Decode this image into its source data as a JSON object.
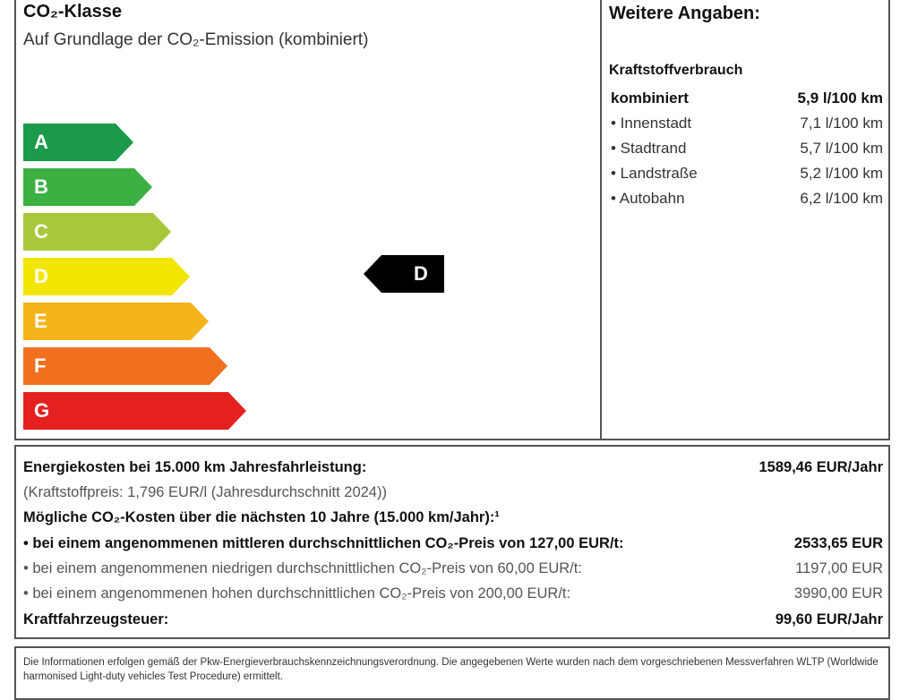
{
  "co2": {
    "title": "CO₂-Klasse",
    "subtitle": "Auf Grundlage der CO₂-Emission (kombiniert)",
    "classes": [
      {
        "label": "A",
        "color": "#1a9a4a"
      },
      {
        "label": "B",
        "color": "#3cb043"
      },
      {
        "label": "C",
        "color": "#a6c83a"
      },
      {
        "label": "D",
        "color": "#f2e600"
      },
      {
        "label": "E",
        "color": "#f5b41a"
      },
      {
        "label": "F",
        "color": "#f07020"
      },
      {
        "label": "G",
        "color": "#e52020"
      }
    ],
    "current_class": "D"
  },
  "weitere": {
    "title": "Weitere Angaben:",
    "section": "Kraftstoffverbrauch",
    "rows": [
      {
        "label": "kombiniert",
        "value": "5,9 l/100 km"
      },
      {
        "label": "• Innenstadt",
        "value": "7,1 l/100 km"
      },
      {
        "label": "• Stadtrand",
        "value": "5,7 l/100 km"
      },
      {
        "label": "• Landstraße",
        "value": "5,2 l/100 km"
      },
      {
        "label": "• Autobahn",
        "value": "6,2 l/100 km"
      }
    ]
  },
  "costs": {
    "energy_label": "Energiekosten bei 15.000 km Jahresfahrleistung:",
    "energy_value": "1589,46 EUR/Jahr",
    "fuel_price": "(Kraftstoffpreis: 1,796 EUR/l (Jahresdurchschnitt 2024))",
    "co2_heading": "Mögliche CO₂-Kosten über die nächsten 10 Jahre (15.000 km/Jahr):¹",
    "rows": [
      {
        "label": "• bei einem angenommenen mittleren durchschnittlichen CO₂-Preis von 127,00 EUR/t:",
        "value": "2533,65 EUR"
      },
      {
        "label": "• bei einem angenommenen niedrigen durchschnittlichen CO₂-Preis von 60,00 EUR/t:",
        "value": "1197,00 EUR"
      },
      {
        "label": "• bei einem angenommenen hohen durchschnittlichen CO₂-Preis von 200,00 EUR/t:",
        "value": "3990,00 EUR"
      }
    ],
    "tax_label": "Kraftfahrzeugsteuer:",
    "tax_value": "99,60 EUR/Jahr"
  },
  "info": "Die Informationen erfolgen gemäß der Pkw-Energieverbrauchskennzeichnungsverordnung. Die angegebenen Werte wurden nach dem vorgeschriebenen Messverfahren WLTP (Worldwide harmonised Light-duty vehicles Test Procedure) ermittelt."
}
